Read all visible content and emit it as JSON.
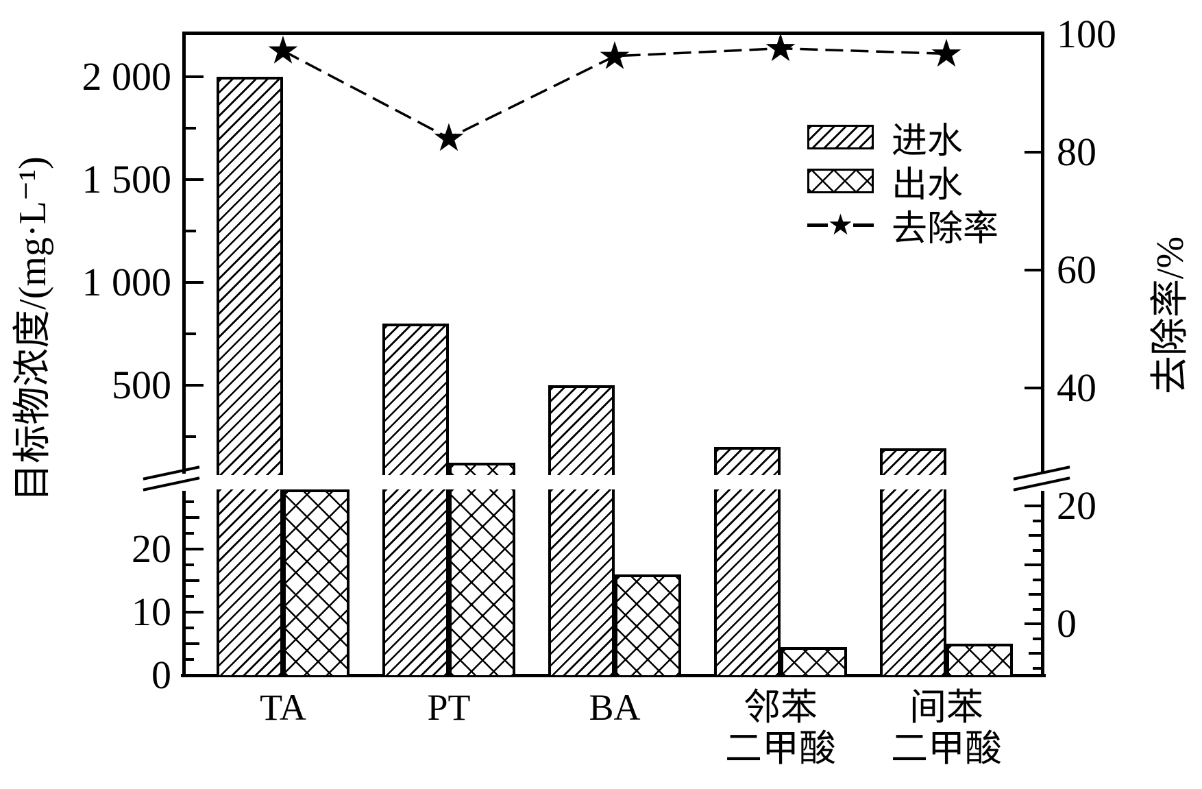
{
  "figure": {
    "left_axis_title": "目标物浓度/(mg·L⁻¹)",
    "right_axis_title": "去除率/%",
    "background": "#ffffff",
    "ink": "#000000"
  },
  "legend": {
    "items": [
      {
        "label": "进水",
        "swatch": "diagonal-hatch"
      },
      {
        "label": "出水",
        "swatch": "cross-hatch"
      },
      {
        "label": "去除率",
        "swatch": "dash-star-line"
      }
    ]
  },
  "chart_data": {
    "type": "bar",
    "subtype": "grouped hatched bars + star marker line, dual y-axis, broken left concentration axis",
    "categories": [
      "TA",
      "PT",
      "BA",
      "邻苯二甲酸",
      "间苯二甲酸"
    ],
    "category_axis_labels": [
      [
        "TA"
      ],
      [
        "PT"
      ],
      [
        "BA"
      ],
      [
        "邻苯",
        "二甲酸"
      ],
      [
        "间苯",
        "二甲酸"
      ]
    ],
    "series": [
      {
        "name": "进水",
        "type": "bar",
        "pattern": "diagonal-hatch",
        "unit": "mg·L⁻¹",
        "values": [
          2000,
          800,
          500,
          200,
          195
        ]
      },
      {
        "name": "出水",
        "type": "bar",
        "pattern": "cross-hatch",
        "unit": "mg·L⁻¹",
        "values": [
          40,
          125,
          16,
          4.5,
          5
        ],
        "note": "TA 出水 bar top is hidden inside the axis break"
      },
      {
        "name": "去除率",
        "type": "line",
        "marker": "star",
        "axis": "right",
        "unit": "%",
        "values": [
          97.2,
          82.4,
          96.3,
          97.6,
          96.7
        ]
      }
    ],
    "left_axis": {
      "label": "目标物浓度/(mg·L⁻¹)",
      "upper_tick_labels": [
        "2 000",
        "1 500",
        "1 000",
        "500"
      ],
      "upper_range": [
        50,
        2200
      ],
      "lower_tick_labels": [
        "20",
        "10",
        "0"
      ],
      "lower_range": [
        0,
        30
      ],
      "break_hides_values_between": [
        30,
        50
      ]
    },
    "right_axis": {
      "label": "去除率/%",
      "tick_labels": [
        "100",
        "80",
        "60",
        "40",
        "20",
        "0"
      ],
      "range": [
        0,
        100
      ]
    },
    "grid": false,
    "legend_position": "upper right inside plot"
  }
}
